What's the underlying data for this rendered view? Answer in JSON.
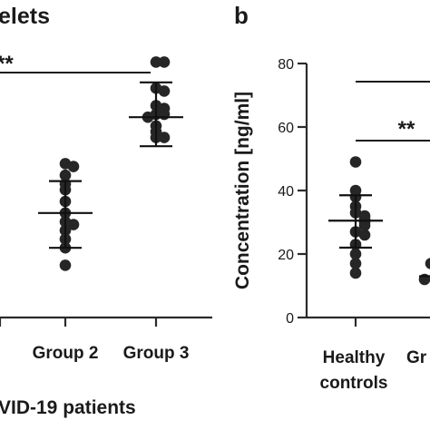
{
  "panel_b_letter": "b",
  "left_panel": {
    "title_fragment": "elets",
    "xlabel_fragment": "VID-19 patients",
    "significance": "**"
  },
  "right_panel": {
    "ylabel": "Concentration [ng/ml]",
    "significance": "**",
    "yticks": [
      "0",
      "20",
      "40",
      "60",
      "80"
    ],
    "category_1_line1": "Healthy",
    "category_1_line2": "controls",
    "category_2_fragment": "Gr"
  },
  "chart_data": [
    {
      "type": "scatter",
      "title": "elets",
      "xlabel": "VID-19 patients",
      "ylabel": "",
      "categories": [
        "Group 2",
        "Group 3"
      ],
      "y_units": "relative (axis not visible)",
      "ylim": [
        0,
        100
      ],
      "series": [
        {
          "category": "Group 2",
          "values": [
            53,
            52,
            49,
            46,
            44,
            40,
            36,
            33,
            32,
            30,
            27,
            24,
            18
          ],
          "mean": 36,
          "sd_upper": 47,
          "sd_lower": 24
        },
        {
          "category": "Group 3",
          "values": [
            88,
            88,
            79,
            78,
            73,
            72,
            70,
            70,
            69,
            66,
            64,
            62,
            62
          ],
          "mean": 69,
          "sd_upper": 81,
          "sd_lower": 59
        }
      ],
      "annotations": [
        {
          "text": "**",
          "between": [
            "(cropped)",
            "Group 3"
          ]
        }
      ]
    },
    {
      "type": "scatter",
      "title": "",
      "xlabel": "",
      "ylabel": "Concentration [ng/ml]",
      "categories": [
        "Healthy controls",
        "Gr"
      ],
      "ylim": [
        0,
        80
      ],
      "series": [
        {
          "category": "Healthy controls",
          "values": [
            49,
            40,
            38,
            35,
            33,
            32,
            31,
            30,
            29,
            27,
            26,
            23,
            20,
            17,
            14
          ],
          "mean": 30.5,
          "sd_upper": 38.5,
          "sd_lower": 22
        },
        {
          "category": "Gr",
          "values": [
            17,
            12
          ],
          "mean": 13
        }
      ],
      "annotations": [
        {
          "text": "**",
          "between": [
            "Healthy controls",
            "Gr"
          ]
        }
      ]
    }
  ]
}
